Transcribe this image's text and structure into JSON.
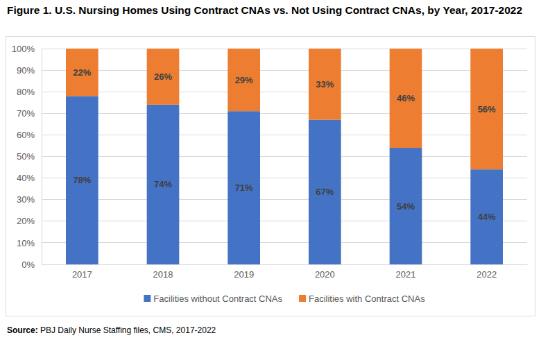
{
  "chart_data": {
    "type": "bar",
    "stacked": true,
    "title": "Figure 1. U.S. Nursing Homes Using Contract CNAs vs. Not Using Contract CNAs, by Year, 2017-2022",
    "source": "Source: PBJ Daily Nurse Staffing files, CMS, 2017-2022",
    "categories": [
      "2017",
      "2018",
      "2019",
      "2020",
      "2021",
      "2022"
    ],
    "series": [
      {
        "name": "Facilities without Contract CNAs",
        "color": "#4472c4",
        "values": [
          78,
          74,
          71,
          67,
          54,
          44
        ],
        "value_labels": [
          "78%",
          "74%",
          "71%",
          "67%",
          "54%",
          "44%"
        ]
      },
      {
        "name": "Facilities with Contract CNAs",
        "color": "#ed7d31",
        "values": [
          22,
          26,
          29,
          33,
          46,
          56
        ],
        "value_labels": [
          "22%",
          "26%",
          "29%",
          "33%",
          "46%",
          "56%"
        ]
      }
    ],
    "ylim": [
      0,
      100
    ],
    "yticks": [
      {
        "value": 0,
        "label": "0%"
      },
      {
        "value": 10,
        "label": "10%"
      },
      {
        "value": 20,
        "label": "20%"
      },
      {
        "value": 30,
        "label": "30%"
      },
      {
        "value": 40,
        "label": "40%"
      },
      {
        "value": 50,
        "label": "50%"
      },
      {
        "value": 60,
        "label": "60%"
      },
      {
        "value": 70,
        "label": "70%"
      },
      {
        "value": 80,
        "label": "80%"
      },
      {
        "value": 90,
        "label": "90%"
      },
      {
        "value": 100,
        "label": "100%"
      }
    ],
    "grid": true,
    "data_labels": true,
    "legend": "bottom"
  }
}
